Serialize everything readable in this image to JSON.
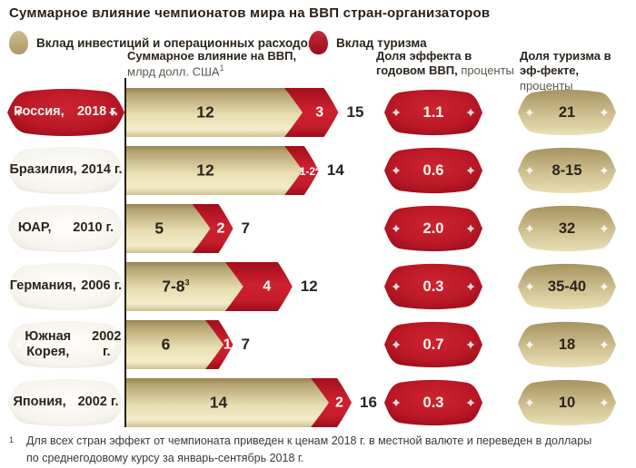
{
  "title": "Суммарное влияние чемпионатов мира на ВВП стран-организаторов",
  "legend": [
    {
      "label": "Вклад инвестиций и операционных расходов",
      "color": "#bcab7c"
    },
    {
      "label": "Вклад туризма",
      "color": "#b51623"
    }
  ],
  "columns": {
    "bar": {
      "bold": "Суммарное влияние на ВВП,",
      "light": "млрд долл. США",
      "sup": "1"
    },
    "gdp": {
      "bold": "Доля эффекта в годовом ВВП,",
      "light": "проценты"
    },
    "tourism": {
      "bold": "Доля туризма в эф-фекте,",
      "light": "проценты"
    }
  },
  "rows": [
    {
      "country": "Россия,",
      "year": "2018 г.",
      "highlight": true,
      "invest": {
        "label": "12",
        "sup": "",
        "units": 12
      },
      "tour": {
        "label": "3",
        "sup": "",
        "units": 3
      },
      "total": "15",
      "gdp_share": "1.1",
      "tourism_share": "21"
    },
    {
      "country": "Бразилия,",
      "year": "2014 г.",
      "highlight": false,
      "invest": {
        "label": "12",
        "sup": "",
        "units": 12
      },
      "tour": {
        "label": "1-2",
        "sup": "2",
        "units": 1.5
      },
      "total": "14",
      "gdp_share": "0.6",
      "tourism_share": "8-15"
    },
    {
      "country": "ЮАР,",
      "year": "2010 г.",
      "highlight": false,
      "invest": {
        "label": "5",
        "sup": "",
        "units": 5
      },
      "tour": {
        "label": "2",
        "sup": "",
        "units": 2
      },
      "total": "7",
      "gdp_share": "2.0",
      "tourism_share": "32"
    },
    {
      "country": "Германия,",
      "year": "2006 г.",
      "highlight": false,
      "invest": {
        "label": "7-8",
        "sup": "3",
        "units": 7.5
      },
      "tour": {
        "label": "4",
        "sup": "",
        "units": 4
      },
      "total": "12",
      "gdp_share": "0.3",
      "tourism_share": "35-40"
    },
    {
      "country": "Южная Корея,",
      "year": "2002 г.",
      "highlight": false,
      "invest": {
        "label": "6",
        "sup": "",
        "units": 6
      },
      "tour": {
        "label": "1",
        "sup": "",
        "units": 1
      },
      "total": "7",
      "gdp_share": "0.7",
      "tourism_share": "18"
    },
    {
      "country": "Япония,",
      "year": "2002 г.",
      "highlight": false,
      "invest": {
        "label": "14",
        "sup": "",
        "units": 14
      },
      "tour": {
        "label": "2",
        "sup": "",
        "units": 2
      },
      "total": "16",
      "gdp_share": "0.3",
      "tourism_share": "10"
    }
  ],
  "footnote": {
    "sup": "1",
    "text": "Для всех стран эффект от чемпионата приведен к ценам 2018 г. в местной валюте и переведен в доллары по среднегодовому курсу за январь-сентябрь 2018 г."
  },
  "chart_data": {
    "type": "bar",
    "orientation": "horizontal",
    "title": "Суммарное влияние чемпионатов мира на ВВП стран-организаторов",
    "xlabel": "Суммарное влияние на ВВП, млрд долл. США",
    "categories": [
      "Россия, 2018 г.",
      "Бразилия, 2014 г.",
      "ЮАР, 2010 г.",
      "Германия, 2006 г.",
      "Южная Корея, 2002 г.",
      "Япония, 2002 г."
    ],
    "series": [
      {
        "name": "Вклад инвестиций и операционных расходов",
        "values": [
          12,
          12,
          5,
          7.5,
          6,
          14
        ],
        "labels": [
          "12",
          "12",
          "5",
          "7-8",
          "6",
          "14"
        ],
        "color": "#d6c796"
      },
      {
        "name": "Вклад туризма",
        "values": [
          3,
          1.5,
          2,
          4,
          1,
          2
        ],
        "labels": [
          "3",
          "1-2",
          "2",
          "4",
          "1",
          "2"
        ],
        "color": "#c01c2a"
      }
    ],
    "totals": [
      15,
      14,
      7,
      12,
      7,
      16
    ],
    "extra_columns": [
      {
        "label": "Доля эффекта в годовом ВВП, проценты",
        "values": [
          "1.1",
          "0.6",
          "2.0",
          "0.3",
          "0.7",
          "0.3"
        ]
      },
      {
        "label": "Доля туризма в эффекте, проценты",
        "values": [
          "21",
          "8-15",
          "32",
          "35-40",
          "18",
          "10"
        ]
      }
    ],
    "xlim": [
      0,
      16
    ],
    "grid": false,
    "legend_position": "top"
  }
}
